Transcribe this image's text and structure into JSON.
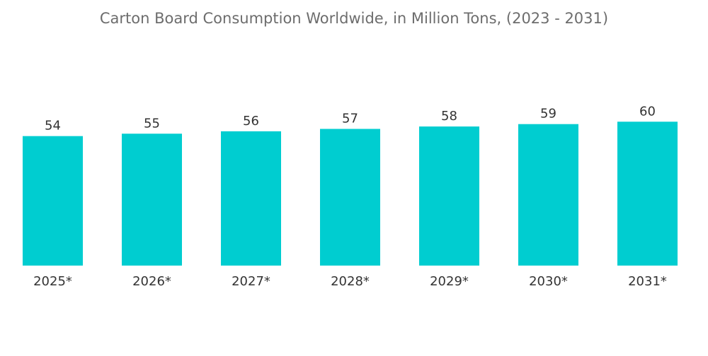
{
  "chart_data": {
    "type": "bar",
    "title": "Carton Board Consumption Worldwide, in Million Tons, (2023 - 2031)",
    "xlabel": "",
    "ylabel": "",
    "categories": [
      "2025*",
      "2026*",
      "2027*",
      "2028*",
      "2029*",
      "2030*",
      "2031*"
    ],
    "values": [
      54,
      55,
      56,
      57,
      58,
      59,
      60
    ],
    "ylim": [
      0,
      60
    ],
    "grid": false,
    "legend": "none",
    "bar_color": "#00cdd0"
  }
}
